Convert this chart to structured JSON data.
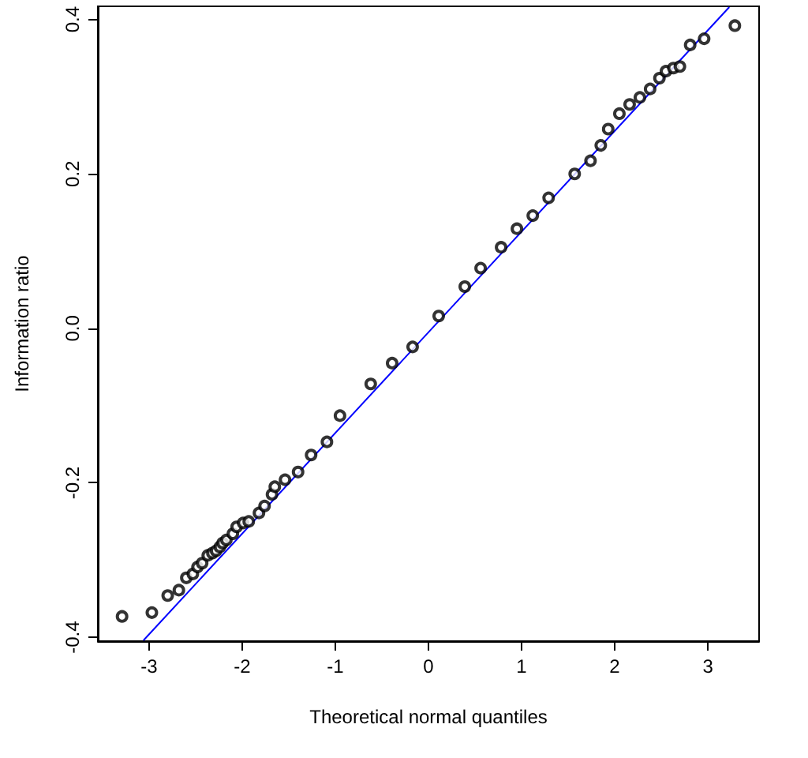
{
  "chart_data": {
    "type": "scatter",
    "xlabel": "Theoretical normal quantiles",
    "ylabel": "Information ratio",
    "xlim": [
      -3.55,
      3.55
    ],
    "xticks": [
      -3,
      -2,
      -1,
      0,
      1,
      2,
      3
    ],
    "ylim": [
      -0.405,
      0.417
    ],
    "yticks": [
      -0.4,
      -0.2,
      {
        "value": 0,
        "label": "0.0"
      },
      0.2,
      0.4
    ],
    "grid": false,
    "marker": "circle",
    "series": [
      {
        "color": "#000000",
        "x": [
          -3.29,
          -2.97,
          -2.8,
          -2.68,
          -2.6,
          -2.53,
          -2.48,
          -2.43,
          -2.37,
          -2.32,
          -2.28,
          -2.24,
          -2.21,
          -2.17,
          -2.1,
          -2.06,
          -1.99,
          -1.93,
          -1.82,
          -1.76,
          -1.68,
          -1.65,
          -1.54,
          -1.4,
          -1.26,
          -1.09,
          -0.95,
          -0.62,
          -0.39,
          -0.17,
          0.11,
          0.39,
          0.56,
          0.78,
          0.95,
          1.12,
          1.29,
          1.57,
          1.74,
          1.85,
          1.93,
          2.05,
          2.16,
          2.27,
          2.38,
          2.48,
          2.55,
          2.63,
          2.7,
          2.81,
          2.96,
          3.29
        ],
        "values": [
          -0.373,
          -0.368,
          -0.346,
          -0.339,
          -0.323,
          -0.318,
          -0.309,
          -0.304,
          -0.294,
          -0.291,
          -0.288,
          -0.283,
          -0.278,
          -0.274,
          -0.266,
          -0.257,
          -0.252,
          -0.25,
          -0.239,
          -0.23,
          -0.215,
          -0.205,
          -0.196,
          -0.186,
          -0.164,
          -0.147,
          -0.113,
          -0.072,
          -0.045,
          -0.024,
          0.016,
          0.054,
          0.078,
          0.105,
          0.129,
          0.146,
          0.169,
          0.2,
          0.217,
          0.237,
          0.258,
          0.278,
          0.29,
          0.299,
          0.31,
          0.324,
          0.333,
          0.337,
          0.339,
          0.367,
          0.375,
          0.392
        ]
      },
      {
        "type": "line",
        "marker": "none",
        "color": "#0000ff",
        "line_style": "solid",
        "x": [
          -3.06,
          3.23
        ],
        "values": [
          -0.404,
          0.416
        ]
      }
    ]
  }
}
